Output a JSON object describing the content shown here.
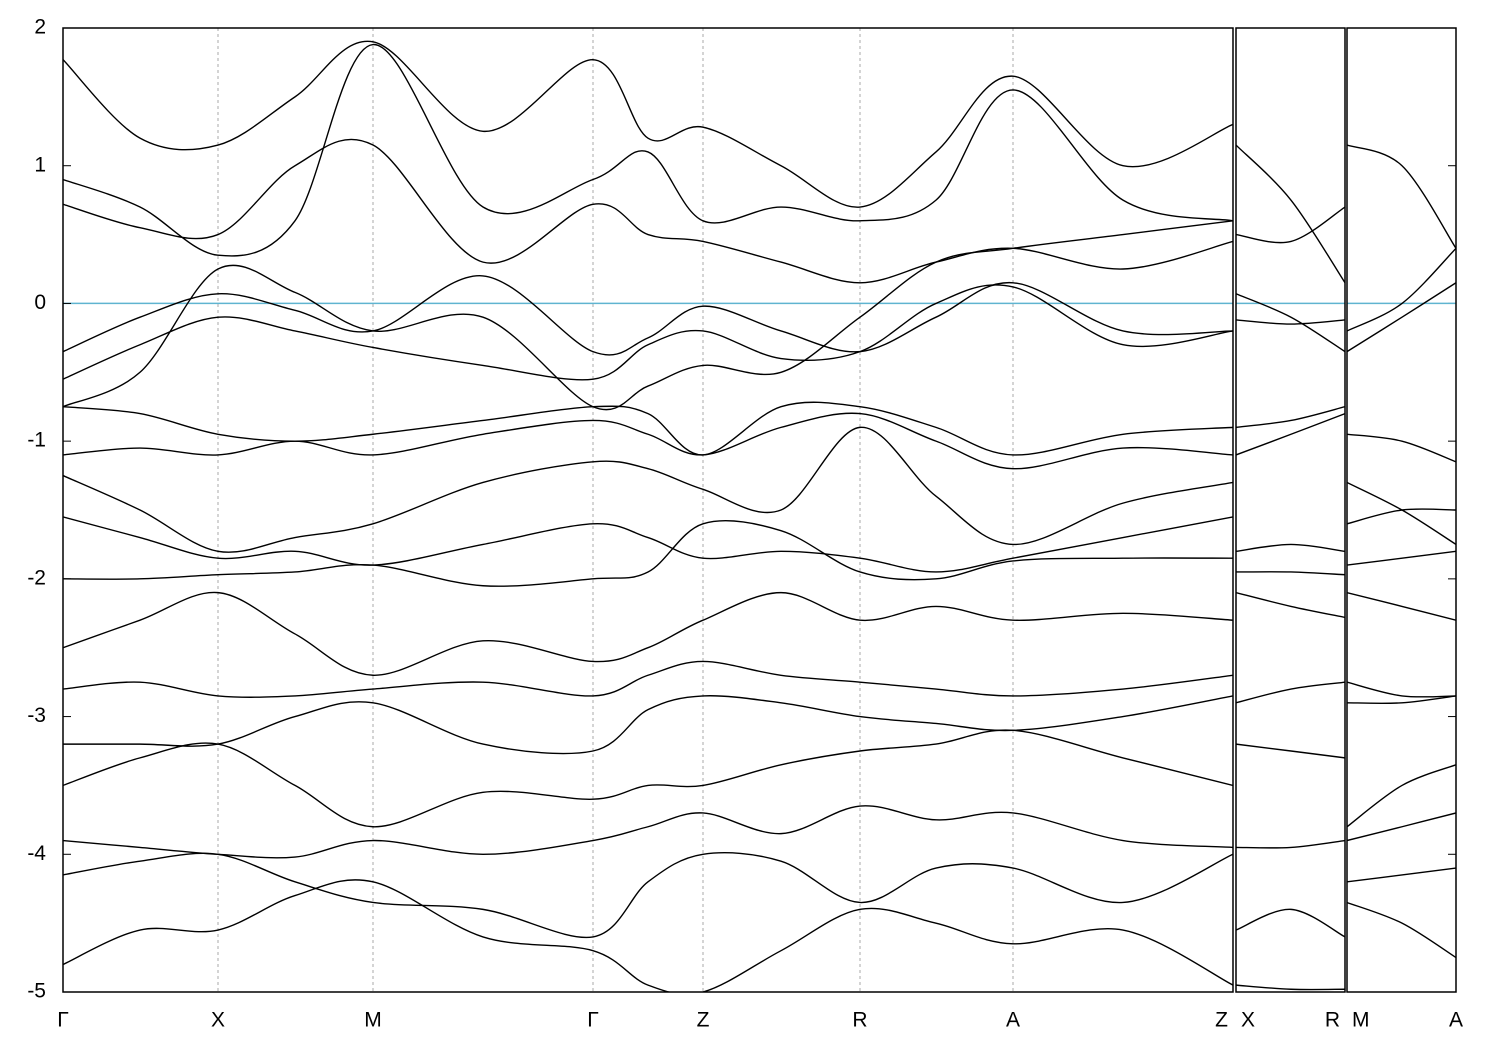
{
  "chart_data": [
    {
      "type": "line",
      "ylim": [
        -5,
        2
      ],
      "yticks": [
        -5,
        -4,
        -3,
        -2,
        -1,
        0,
        1,
        2
      ],
      "xlim": [
        0,
        1170
      ],
      "xticks": [
        {
          "value": 0,
          "label": "Γ"
        },
        {
          "value": 155,
          "label": "X"
        },
        {
          "value": 310,
          "label": "M"
        },
        {
          "value": 530,
          "label": "Γ"
        },
        {
          "value": 640,
          "label": "Z"
        },
        {
          "value": 797,
          "label": "R"
        },
        {
          "value": 950,
          "label": "A"
        },
        {
          "value": 1170,
          "label": "Z"
        }
      ],
      "grid": "x",
      "hline": 0,
      "hline_color": "#5fb4d0",
      "x": [
        0,
        77,
        155,
        232,
        310,
        420,
        530,
        585,
        640,
        718,
        797,
        873,
        950,
        1060,
        1170
      ],
      "series": [
        {
          "color": "#000000",
          "values": [
            1.77,
            1.2,
            1.15,
            1.5,
            1.9,
            1.25,
            1.77,
            1.2,
            1.28,
            1.0,
            0.7,
            1.1,
            1.65,
            1.0,
            1.3
          ]
        },
        {
          "color": "#000000",
          "values": [
            0.9,
            0.7,
            0.35,
            0.6,
            1.88,
            0.7,
            0.9,
            1.1,
            0.6,
            0.7,
            0.6,
            0.75,
            1.55,
            0.75,
            0.6
          ]
        },
        {
          "color": "#000000",
          "values": [
            0.72,
            0.55,
            0.5,
            1.0,
            1.15,
            0.3,
            0.72,
            0.5,
            0.45,
            0.3,
            0.15,
            0.3,
            0.4,
            0.25,
            0.45
          ]
        },
        {
          "color": "#000000",
          "values": [
            -0.35,
            -0.1,
            0.07,
            -0.05,
            -0.2,
            0.2,
            -0.35,
            -0.25,
            -0.02,
            -0.2,
            -0.35,
            -0.1,
            0.15,
            -0.2,
            -0.2
          ]
        },
        {
          "color": "#000000",
          "values": [
            -0.55,
            -0.3,
            -0.1,
            -0.2,
            -0.32,
            -0.45,
            -0.55,
            -0.3,
            -0.2,
            -0.4,
            -0.35,
            0.0,
            0.12,
            -0.3,
            -0.2
          ]
        },
        {
          "color": "#000000",
          "values": [
            -0.75,
            -0.5,
            0.25,
            0.08,
            -0.2,
            -0.1,
            -0.75,
            -0.6,
            -0.45,
            -0.5,
            -0.1,
            0.3,
            0.4,
            0.5,
            0.6
          ]
        },
        {
          "color": "#000000",
          "values": [
            -0.75,
            -0.8,
            -0.95,
            -1.0,
            -0.95,
            -0.85,
            -0.75,
            -0.8,
            -1.1,
            -0.75,
            -0.75,
            -0.9,
            -1.1,
            -0.95,
            -0.9
          ]
        },
        {
          "color": "#000000",
          "values": [
            -1.1,
            -1.05,
            -1.1,
            -1.0,
            -1.1,
            -0.95,
            -0.85,
            -0.95,
            -1.1,
            -0.9,
            -0.8,
            -1.0,
            -1.2,
            -1.05,
            -1.1
          ]
        },
        {
          "color": "#000000",
          "values": [
            -1.25,
            -1.5,
            -1.8,
            -1.7,
            -1.6,
            -1.3,
            -1.15,
            -1.2,
            -1.35,
            -1.5,
            -0.9,
            -1.4,
            -1.75,
            -1.45,
            -1.3
          ]
        },
        {
          "color": "#000000",
          "values": [
            -1.55,
            -1.7,
            -1.85,
            -1.8,
            -1.9,
            -1.75,
            -1.6,
            -1.7,
            -1.85,
            -1.8,
            -1.85,
            -1.95,
            -1.85,
            -1.7,
            -1.55
          ]
        },
        {
          "color": "#000000",
          "values": [
            -2.0,
            -2.0,
            -1.97,
            -1.95,
            -1.9,
            -2.05,
            -2.0,
            -1.95,
            -1.6,
            -1.65,
            -1.95,
            -2.0,
            -1.87,
            -1.85,
            -1.85
          ]
        },
        {
          "color": "#000000",
          "values": [
            -2.5,
            -2.3,
            -2.1,
            -2.4,
            -2.7,
            -2.45,
            -2.6,
            -2.5,
            -2.3,
            -2.1,
            -2.3,
            -2.2,
            -2.3,
            -2.25,
            -2.3
          ]
        },
        {
          "color": "#000000",
          "values": [
            -2.8,
            -2.75,
            -2.85,
            -2.85,
            -2.8,
            -2.75,
            -2.85,
            -2.7,
            -2.6,
            -2.7,
            -2.75,
            -2.8,
            -2.85,
            -2.8,
            -2.7
          ]
        },
        {
          "color": "#000000",
          "values": [
            -3.2,
            -3.2,
            -3.2,
            -3.0,
            -2.9,
            -3.2,
            -3.25,
            -2.95,
            -2.85,
            -2.9,
            -3.0,
            -3.05,
            -3.1,
            -3.0,
            -2.85
          ]
        },
        {
          "color": "#000000",
          "values": [
            -3.5,
            -3.3,
            -3.2,
            -3.5,
            -3.8,
            -3.55,
            -3.6,
            -3.5,
            -3.5,
            -3.35,
            -3.25,
            -3.2,
            -3.1,
            -3.3,
            -3.5
          ]
        },
        {
          "color": "#000000",
          "values": [
            -3.9,
            -3.95,
            -4.0,
            -4.02,
            -3.9,
            -4.0,
            -3.9,
            -3.8,
            -3.7,
            -3.85,
            -3.65,
            -3.75,
            -3.7,
            -3.9,
            -3.95
          ]
        },
        {
          "color": "#000000",
          "values": [
            -4.15,
            -4.05,
            -4.0,
            -4.2,
            -4.35,
            -4.4,
            -4.6,
            -4.2,
            -4.0,
            -4.05,
            -4.35,
            -4.1,
            -4.1,
            -4.35,
            -4.0
          ]
        },
        {
          "color": "#000000",
          "values": [
            -4.8,
            -4.55,
            -4.55,
            -4.3,
            -4.2,
            -4.6,
            -4.7,
            -4.95,
            -5.0,
            -4.7,
            -4.4,
            -4.5,
            -4.65,
            -4.55,
            -4.95
          ]
        }
      ]
    },
    {
      "type": "line",
      "ylim": [
        -5,
        2
      ],
      "xlim": [
        0,
        109
      ],
      "xticks": [
        {
          "value": 0,
          "label": "X"
        },
        {
          "value": 109,
          "label": "R"
        }
      ],
      "hline": 0,
      "hline_color": "#5fb4d0",
      "x": [
        0,
        55,
        109
      ],
      "series": [
        {
          "color": "#000000",
          "values": [
            1.15,
            0.75,
            0.15
          ]
        },
        {
          "color": "#000000",
          "values": [
            0.5,
            0.45,
            0.7
          ]
        },
        {
          "color": "#000000",
          "values": [
            0.07,
            -0.1,
            -0.35
          ]
        },
        {
          "color": "#000000",
          "values": [
            -0.12,
            -0.15,
            -0.12
          ]
        },
        {
          "color": "#000000",
          "values": [
            -0.9,
            -0.85,
            -0.75
          ]
        },
        {
          "color": "#000000",
          "values": [
            -1.1,
            -0.95,
            -0.8
          ]
        },
        {
          "color": "#000000",
          "values": [
            -1.8,
            -1.75,
            -1.8
          ]
        },
        {
          "color": "#000000",
          "values": [
            -1.95,
            -1.95,
            -1.97
          ]
        },
        {
          "color": "#000000",
          "values": [
            -2.1,
            -2.2,
            -2.28
          ]
        },
        {
          "color": "#000000",
          "values": [
            -2.9,
            -2.8,
            -2.75
          ]
        },
        {
          "color": "#000000",
          "values": [
            -3.2,
            -3.25,
            -3.3
          ]
        },
        {
          "color": "#000000",
          "values": [
            -3.95,
            -3.95,
            -3.9
          ]
        },
        {
          "color": "#000000",
          "values": [
            -4.55,
            -4.4,
            -4.6
          ]
        },
        {
          "color": "#000000",
          "values": [
            -4.95,
            -4.98,
            -4.98
          ]
        }
      ]
    },
    {
      "type": "line",
      "ylim": [
        -5,
        2
      ],
      "xlim": [
        0,
        109
      ],
      "xticks": [
        {
          "value": 0,
          "label": "M"
        },
        {
          "value": 109,
          "label": "A"
        }
      ],
      "hline": 0,
      "hline_color": "#5fb4d0",
      "x": [
        0,
        55,
        109
      ],
      "series": [
        {
          "color": "#000000",
          "values": [
            1.15,
            1.0,
            0.4
          ]
        },
        {
          "color": "#000000",
          "values": [
            -0.35,
            -0.1,
            0.15
          ]
        },
        {
          "color": "#000000",
          "values": [
            -0.2,
            0.0,
            0.4
          ]
        },
        {
          "color": "#000000",
          "values": [
            -0.95,
            -1.0,
            -1.15
          ]
        },
        {
          "color": "#000000",
          "values": [
            -1.3,
            -1.5,
            -1.75
          ]
        },
        {
          "color": "#000000",
          "values": [
            -1.6,
            -1.5,
            -1.5
          ]
        },
        {
          "color": "#000000",
          "values": [
            -1.9,
            -1.85,
            -1.8
          ]
        },
        {
          "color": "#000000",
          "values": [
            -2.1,
            -2.2,
            -2.3
          ]
        },
        {
          "color": "#000000",
          "values": [
            -2.75,
            -2.85,
            -2.85
          ]
        },
        {
          "color": "#000000",
          "values": [
            -2.9,
            -2.9,
            -2.85
          ]
        },
        {
          "color": "#000000",
          "values": [
            -3.8,
            -3.5,
            -3.35
          ]
        },
        {
          "color": "#000000",
          "values": [
            -3.9,
            -3.8,
            -3.7
          ]
        },
        {
          "color": "#000000",
          "values": [
            -4.2,
            -4.15,
            -4.1
          ]
        },
        {
          "color": "#000000",
          "values": [
            -4.35,
            -4.5,
            -4.75
          ]
        }
      ]
    }
  ]
}
